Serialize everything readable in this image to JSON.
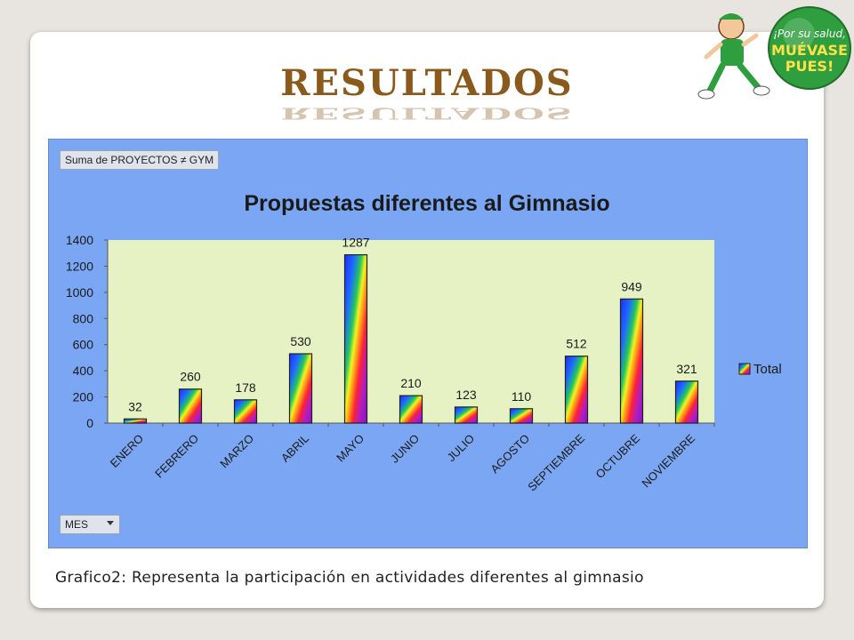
{
  "slide": {
    "title": "RESULTADOS",
    "caption": "Grafico2: Representa la participación en actividades diferentes al gimnasio"
  },
  "logo": {
    "line1": "¡Por su salud,",
    "line2": "MUÉVASE",
    "line3": "PUES!",
    "icon": "running-mascot-icon",
    "color": "#2e9e3e"
  },
  "pivot": {
    "filter_button": "Suma de PROYECTOS ≠ GYM",
    "row_button": "MES",
    "dropdown_icon": "dropdown-arrow-icon"
  },
  "chart_data": {
    "type": "bar",
    "title": "Propuestas diferentes al Gimnasio",
    "categories": [
      "ENERO",
      "FEBRERO",
      "MARZO",
      "ABRIL",
      "MAYO",
      "JUNIO",
      "JULIO",
      "AGOSTO",
      "SEPTIEMBRE",
      "OCTUBRE",
      "NOVIEMBRE"
    ],
    "series": [
      {
        "name": "Total",
        "values": [
          32,
          260,
          178,
          530,
          1287,
          210,
          123,
          110,
          512,
          949,
          321
        ]
      }
    ],
    "ylim": [
      0,
      1400
    ],
    "yticks": [
      0,
      200,
      400,
      600,
      800,
      1000,
      1200,
      1400
    ],
    "grid": false,
    "legend": "right",
    "plot_background": "#e6f2c4",
    "panel_background": "#7aa6f4"
  }
}
